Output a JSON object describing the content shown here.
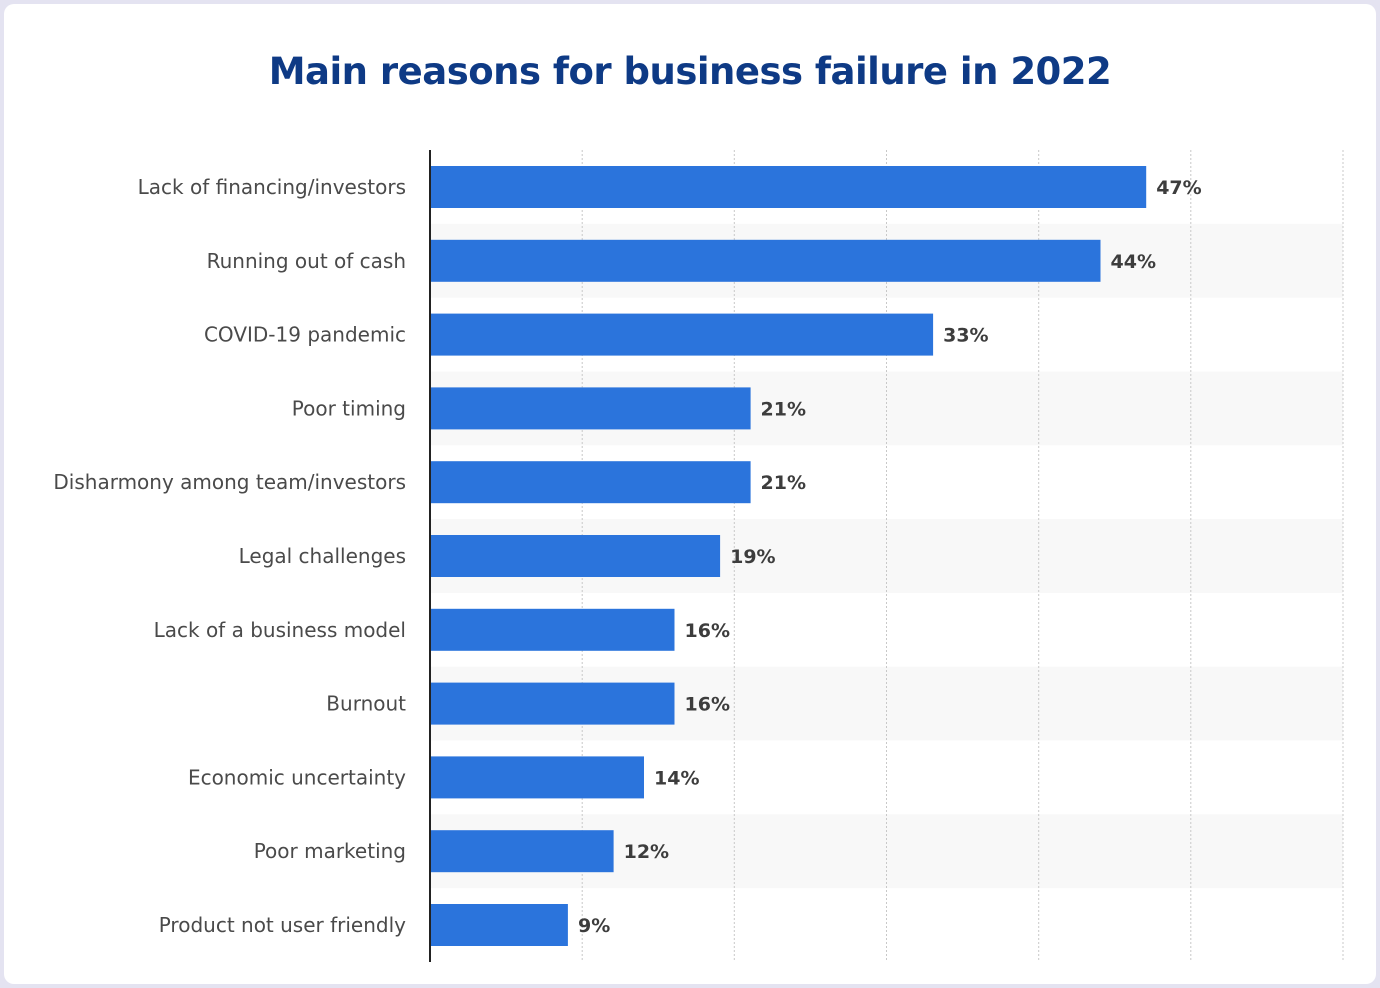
{
  "chart_data": {
    "type": "bar",
    "orientation": "horizontal",
    "title": "Main reasons for business failure in 2022",
    "categories": [
      "Lack of financing/investors",
      "Running out of cash",
      "COVID-19 pandemic",
      "Poor timing",
      "Disharmony among team/investors",
      "Legal challenges",
      "Lack of a business model",
      "Burnout",
      "Economic uncertainty",
      "Poor marketing",
      "Product not user friendly"
    ],
    "values": [
      47,
      44,
      33,
      21,
      21,
      19,
      16,
      16,
      14,
      12,
      9
    ],
    "value_labels": [
      "47%",
      "44%",
      "33%",
      "21%",
      "21%",
      "19%",
      "16%",
      "16%",
      "14%",
      "12%",
      "9%"
    ],
    "unit": "%",
    "xlim": [
      0,
      60
    ],
    "grid": true,
    "colors": {
      "bar": "#2b74dc",
      "title": "#0e3a85",
      "band": "#f8f8f8",
      "grid": "#c8c8c8",
      "axis": "#222222"
    }
  }
}
